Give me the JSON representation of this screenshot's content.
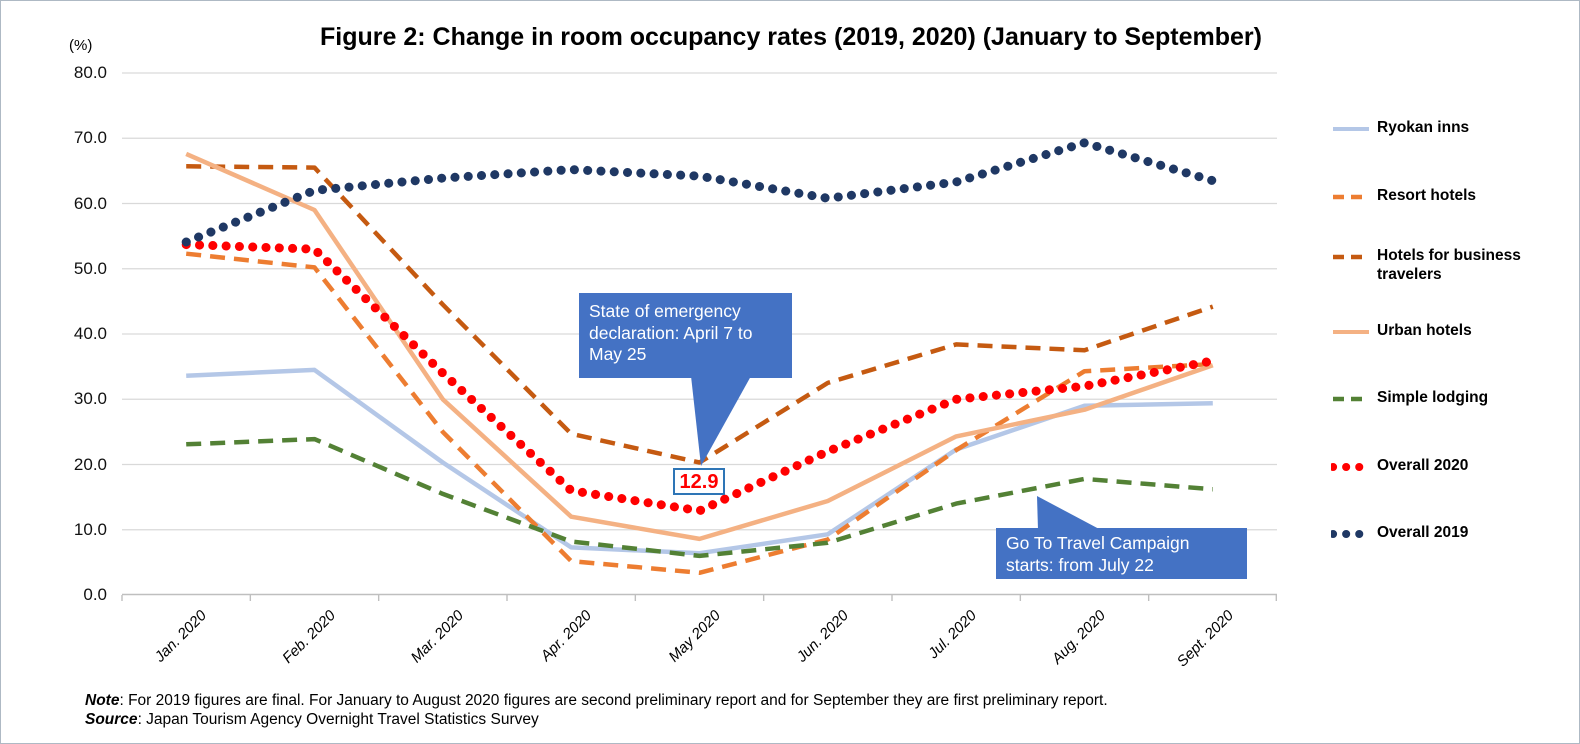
{
  "figure": {
    "title": "Figure 2: Change in room occupancy rates (2019, 2020) (January to September)",
    "y_unit": "(%)",
    "note_label": "Note",
    "note_body": ": For 2019 figures are final. For January to August 2020 figures are second preliminary report and for September they are first preliminary report.",
    "source_label": "Source",
    "source_body": ": Japan Tourism Agency Overnight Travel Statistics Survey"
  },
  "chart_data": {
    "type": "line",
    "title": "Figure 2: Change in room occupancy rates (2019, 2020) (January to September)",
    "xlabel": "",
    "ylabel": "(%)",
    "ylim": [
      0,
      80
    ],
    "y_ticks": [
      "80.0",
      "70.0",
      "60.0",
      "50.0",
      "40.0",
      "30.0",
      "20.0",
      "10.0",
      "0.0"
    ],
    "grid": true,
    "legend_position": "right",
    "categories": [
      "Jan. 2020",
      "Feb. 2020",
      "Mar. 2020",
      "Apr. 2020",
      "May 2020",
      "Jun. 2020",
      "Jul. 2020",
      "Aug. 2020",
      "Sept. 2020"
    ],
    "series": [
      {
        "name": "Ryokan inns",
        "style": "solid",
        "color": "#B4C7E7",
        "values": [
          33.6,
          34.5,
          20.3,
          7.3,
          6.4,
          9.3,
          22.3,
          29.0,
          29.4
        ]
      },
      {
        "name": "Resort hotels",
        "style": "dashed",
        "color": "#ED7D31",
        "values": [
          52.3,
          50.2,
          25.0,
          5.2,
          3.4,
          8.5,
          22.2,
          34.3,
          35.4
        ]
      },
      {
        "name": "Hotels for business travelers",
        "style": "dashed",
        "color": "#C55A11",
        "values": [
          65.7,
          65.5,
          44.5,
          24.7,
          20.3,
          32.5,
          38.4,
          37.5,
          44.2
        ]
      },
      {
        "name": "Urban hotels",
        "style": "solid",
        "color": "#F4B183",
        "values": [
          67.6,
          59.0,
          30.0,
          12.0,
          8.6,
          14.4,
          24.3,
          28.4,
          35.2
        ]
      },
      {
        "name": "Simple lodging",
        "style": "dashed",
        "color": "#538135",
        "values": [
          23.1,
          23.9,
          15.5,
          8.2,
          6.0,
          8.0,
          14.0,
          17.8,
          16.2
        ]
      },
      {
        "name": "Overall 2020",
        "style": "dotted",
        "color": "#FF0000",
        "values": [
          53.7,
          53.0,
          34.0,
          16.0,
          12.9,
          22.0,
          30.0,
          32.0,
          35.9
        ]
      },
      {
        "name": "Overall 2019",
        "style": "dotted",
        "color": "#1F3864",
        "values": [
          54.1,
          62.0,
          63.9,
          65.2,
          64.2,
          60.8,
          63.3,
          69.3,
          63.5
        ]
      }
    ],
    "annotations": [
      {
        "id": "emergency",
        "text": "State of emergency declaration: April 7 to May 25",
        "target": "Hotels for business travelers @ May 2020"
      },
      {
        "id": "gototravel",
        "text": "Go To Travel Campaign starts: from July 22",
        "target": "Simple lodging @ Aug 2020"
      },
      {
        "id": "min_point_label",
        "text": "12.9",
        "target": "Overall 2020 @ May 2020"
      }
    ],
    "colors": {
      "callout_bg": "#4472C4",
      "callout_text": "#ffffff",
      "min_label_border": "#2E75B6",
      "min_label_text": "#FF0000",
      "gridline": "#D9D9D9",
      "axis": "#BFBFBF"
    }
  }
}
